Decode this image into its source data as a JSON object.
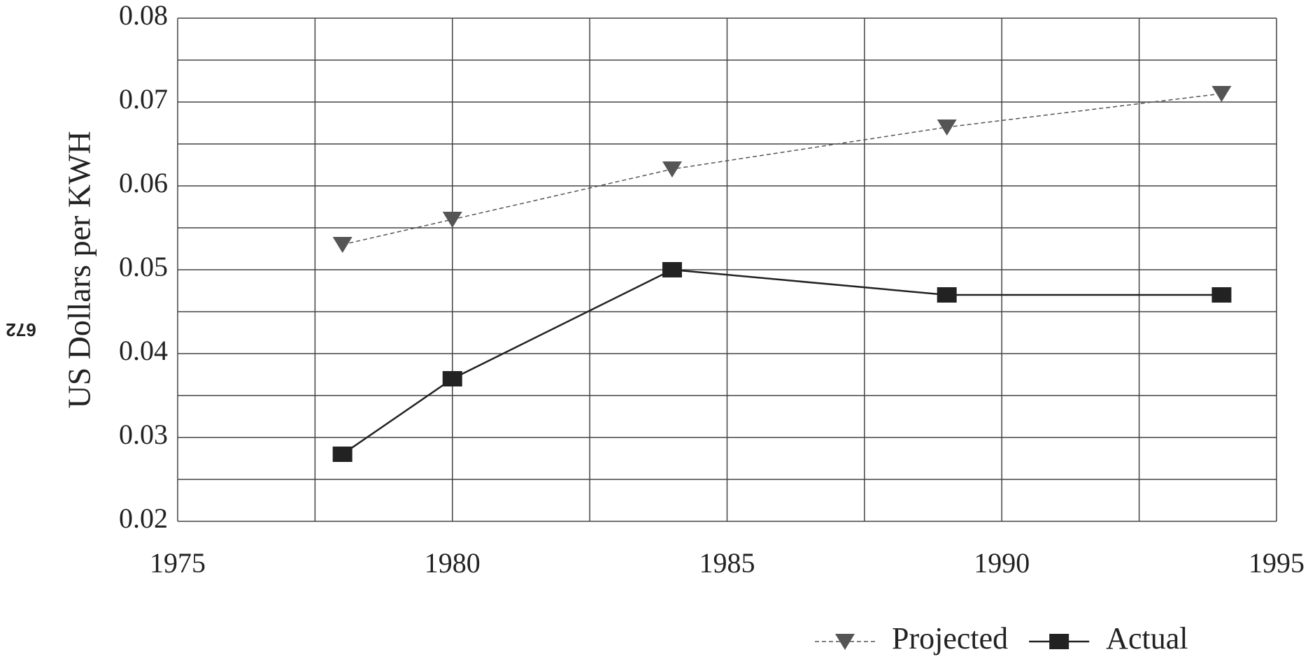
{
  "page_number": "672",
  "chart_data": {
    "type": "line",
    "ylabel": "US Dollars per KWH",
    "x": [
      1978,
      1980,
      1984,
      1989,
      1994
    ],
    "series": [
      {
        "name": "Projected",
        "color": "#555555",
        "values": [
          0.053,
          0.056,
          0.062,
          0.067,
          0.071
        ]
      },
      {
        "name": "Actual",
        "color": "#222222",
        "values": [
          0.028,
          0.037,
          0.05,
          0.047,
          0.047
        ]
      }
    ],
    "xlim": [
      1975,
      1995
    ],
    "xticks": [
      1975,
      1980,
      1985,
      1990,
      1995
    ],
    "ylim": [
      0.02,
      0.08
    ],
    "yticks": [
      0.02,
      0.03,
      0.04,
      0.05,
      0.06,
      0.07,
      0.08
    ],
    "grid": true,
    "legend": "bottom-right"
  }
}
